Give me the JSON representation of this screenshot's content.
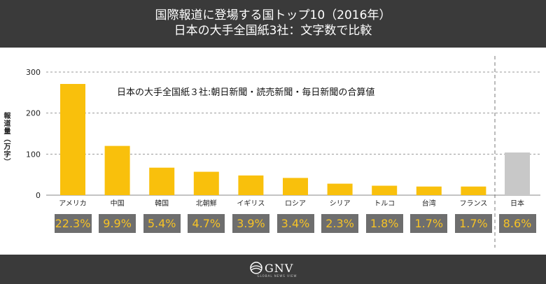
{
  "header": {
    "title_line1": "国際報道に登場する国トップ10（2016年）",
    "title_line2": "日本の大手全国紙3社：文字数で比較"
  },
  "annotation": "日本の大手全国紙３社:朝日新聞・読売新聞・毎日新聞の合算値",
  "footer": {
    "logo_text": "GNV",
    "logo_sub": "GLOBAL NEWS VIEW"
  },
  "colors": {
    "bar": "#f9c00c",
    "japan_bar": "#c8c8c8",
    "header_bg": "#3a3a3a",
    "pct_box": "#6e6e6e",
    "pct_text": "#f7c325"
  },
  "chart_data": {
    "type": "bar",
    "title": "",
    "ylabel": "報道量（万字）",
    "xlabel": "",
    "ylim": [
      0,
      300
    ],
    "yticks": [
      "0",
      "100",
      "200",
      "300"
    ],
    "grid": true,
    "categories": [
      "アメリカ",
      "中国",
      "韓国",
      "北朝鮮",
      "イギリス",
      "ロシア",
      "シリア",
      "トルコ",
      "台湾",
      "フランス",
      "日本"
    ],
    "values": [
      271,
      120,
      67,
      57,
      48,
      42,
      28,
      23,
      21,
      21,
      104
    ],
    "percentages": [
      "22.3%",
      "9.9%",
      "5.4%",
      "4.7%",
      "3.9%",
      "3.4%",
      "2.3%",
      "1.8%",
      "1.7%",
      "1.7%",
      "8.6%"
    ],
    "highlight_category": "日本"
  }
}
